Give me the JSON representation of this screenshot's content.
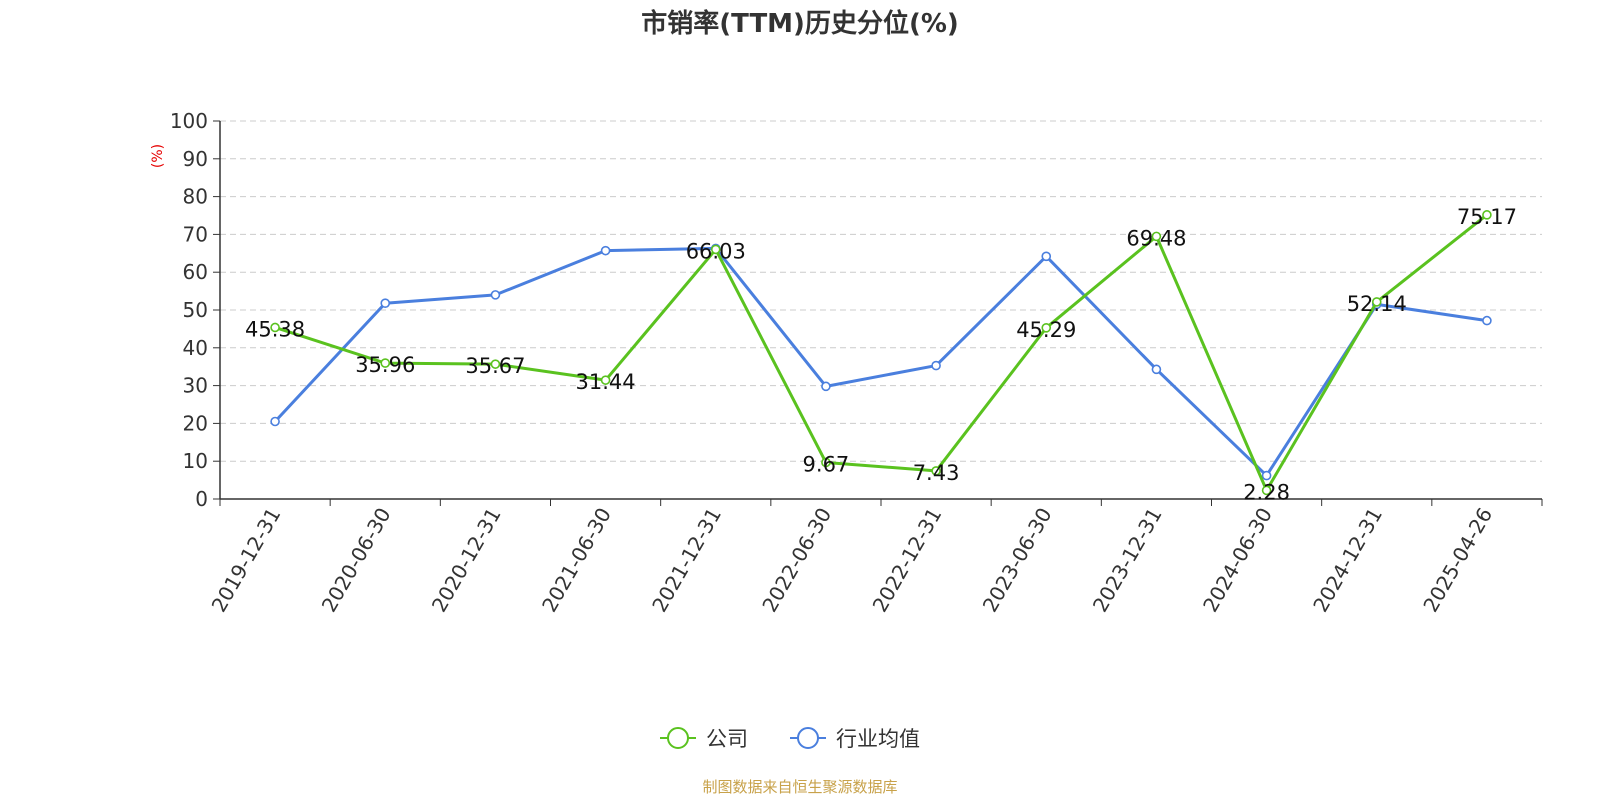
{
  "chart_data": {
    "type": "line",
    "title": "市销率(TTM)历史分位(%)",
    "ylabel": "(%)",
    "ylim": [
      0,
      100
    ],
    "yticks": [
      0,
      10,
      20,
      30,
      40,
      50,
      60,
      70,
      80,
      90,
      100
    ],
    "grid": true,
    "legend_position": "bottom-center",
    "categories": [
      "2019-12-31",
      "2020-06-30",
      "2020-12-31",
      "2021-06-30",
      "2021-12-31",
      "2022-06-30",
      "2022-12-31",
      "2023-06-30",
      "2023-12-31",
      "2024-06-30",
      "2024-12-31",
      "2025-04-26"
    ],
    "series": [
      {
        "name": "公司",
        "color": "#5ac21f",
        "values": [
          45.38,
          35.96,
          35.67,
          31.44,
          66.03,
          9.67,
          7.43,
          45.29,
          69.48,
          2.28,
          52.14,
          75.17
        ],
        "labels": [
          "45.38",
          "35.96",
          "35.67",
          "31.44",
          "66.03",
          "9.67",
          "7.43",
          "45.29",
          "69.48",
          "2.28",
          "52.14",
          "75.17"
        ]
      },
      {
        "name": "行业均值",
        "color": "#4a7fde",
        "values": [
          20.5,
          51.8,
          54.0,
          65.7,
          66.3,
          29.8,
          35.3,
          64.2,
          34.3,
          6.2,
          51.5,
          47.2
        ]
      }
    ]
  },
  "source": "制图数据来自恒生聚源数据库"
}
